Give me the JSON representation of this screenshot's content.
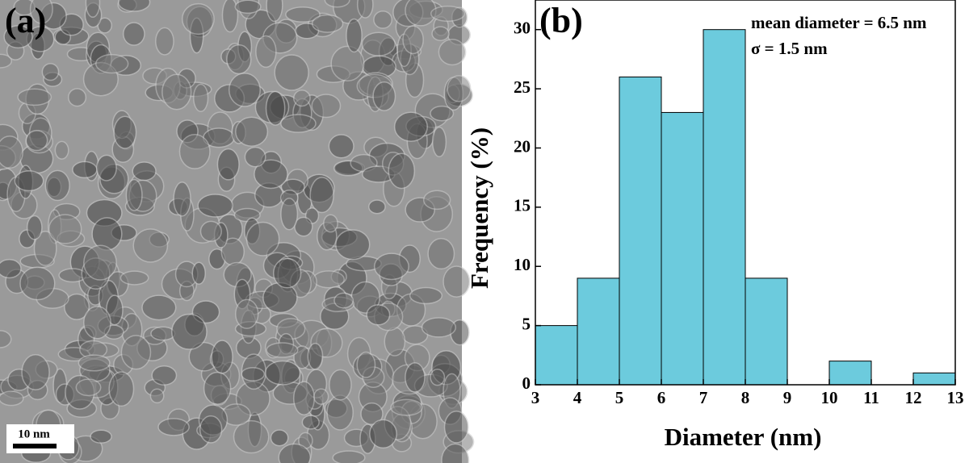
{
  "image_panel": {
    "label": "(a)",
    "scale_bar": "10 nm"
  },
  "chart_data": {
    "type": "histogram",
    "label": "(b)",
    "annotations": [
      "mean diameter = 6.5 nm",
      "σ = 1.5 nm"
    ],
    "xlabel": "Diameter (nm)",
    "ylabel": "Frequency (%)",
    "bins": [
      3,
      4,
      5,
      6,
      7,
      8,
      9,
      10,
      11,
      12,
      13
    ],
    "values": [
      5,
      9,
      26,
      23,
      30,
      9,
      0,
      2,
      0,
      1
    ],
    "color": "#6ccbdd",
    "xlim": [
      3,
      13
    ],
    "ylim": [
      0,
      32.5
    ],
    "xticks": [
      3,
      4,
      5,
      6,
      7,
      8,
      9,
      10,
      11,
      12,
      13
    ],
    "yticks": [
      0,
      5,
      10,
      15,
      20,
      25,
      30
    ]
  }
}
